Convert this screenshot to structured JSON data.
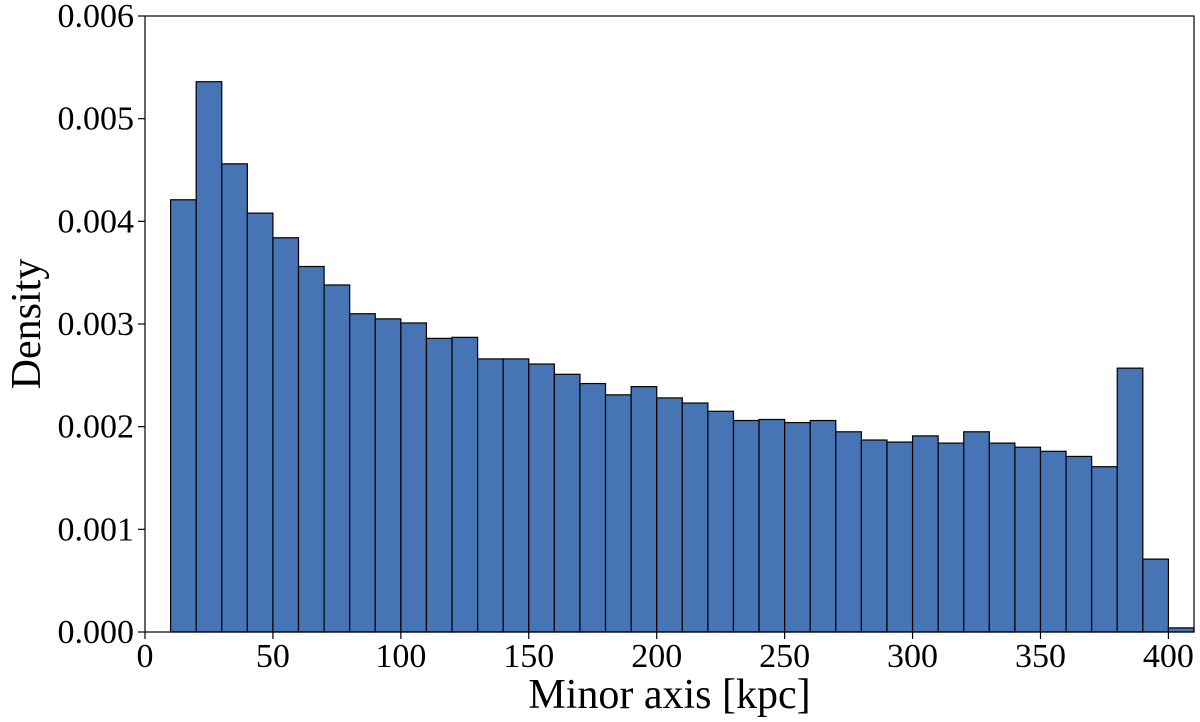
{
  "chart_data": {
    "type": "bar",
    "title": "",
    "xlabel": "Minor axis [kpc]",
    "ylabel": "Density",
    "xlim": [
      0,
      410
    ],
    "ylim": [
      0,
      0.006
    ],
    "xticks": [
      0,
      50,
      100,
      150,
      200,
      250,
      300,
      350,
      400
    ],
    "yticks": [
      0.0,
      0.001,
      0.002,
      0.003,
      0.004,
      0.005,
      0.006
    ],
    "bin_width": 10,
    "bin_start": 10,
    "values": [
      0.00421,
      0.00536,
      0.00456,
      0.00408,
      0.00384,
      0.00356,
      0.00338,
      0.0031,
      0.00305,
      0.00301,
      0.00286,
      0.00287,
      0.00266,
      0.00266,
      0.00261,
      0.00251,
      0.00242,
      0.00231,
      0.00239,
      0.00228,
      0.00223,
      0.00215,
      0.00206,
      0.00207,
      0.00204,
      0.00206,
      0.00195,
      0.00187,
      0.00185,
      0.00191,
      0.00184,
      0.00195,
      0.00184,
      0.0018,
      0.00176,
      0.00171,
      0.00161,
      0.00257,
      0.00071,
      4e-05
    ],
    "bar_color": "#4674b4",
    "edge_color": "#000000",
    "grid": false,
    "legend": "none"
  }
}
